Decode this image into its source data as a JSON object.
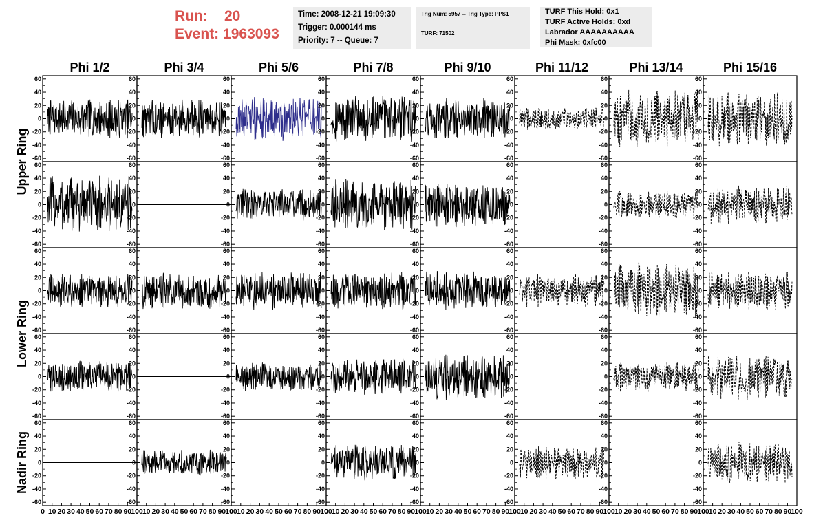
{
  "header": {
    "run_label": "Run:",
    "run_value": "20",
    "event_label": "Event:",
    "event_value": "1963093",
    "time_box": [
      "Time: 2008-12-21 19:09:30",
      "Trigger: 0.000144 ms",
      "Priority: 7 -- Queue: 7"
    ],
    "trig_box": [
      "Trig Num: 5957 -- Trig Type: PPS1",
      "TURF: 71502"
    ],
    "turf_box": [
      "TURF This Hold: 0x1",
      "TURF Active Holds: 0xd",
      "Labrador AAAAAAAAAA",
      "Phi Mask: 0xfc00"
    ]
  },
  "colors": {
    "trace": "#000000",
    "highlight": "#2e2e8c",
    "accent": "#d9534f"
  },
  "chart_data": {
    "type": "line",
    "columns": [
      "Phi 1/2",
      "Phi 3/4",
      "Phi 5/6",
      "Phi 7/8",
      "Phi 9/10",
      "Phi 11/12",
      "Phi 13/14",
      "Phi 15/16"
    ],
    "ring_labels": [
      {
        "label": "Upper Ring",
        "rows": [
          0,
          1
        ]
      },
      {
        "label": "Lower Ring",
        "rows": [
          2,
          3
        ]
      },
      {
        "label": "Nadir Ring",
        "rows": [
          4
        ]
      }
    ],
    "ylim": [
      -65,
      65
    ],
    "yticks": [
      -60,
      -40,
      -20,
      0,
      20,
      40,
      60
    ],
    "xlim": [
      0,
      100
    ],
    "xticks": [
      0,
      10,
      20,
      30,
      40,
      50,
      60,
      70,
      80,
      90,
      100
    ],
    "panels": [
      [
        {
          "trace": "solid",
          "amp": 30
        },
        {
          "trace": "solid",
          "amp": 30
        },
        {
          "trace": "highlight",
          "amp": 34
        },
        {
          "trace": "solid",
          "amp": 36
        },
        {
          "trace": "solid",
          "amp": 32
        },
        {
          "trace": "dashed",
          "amp": 18
        },
        {
          "trace": "dashed",
          "amp": 44
        },
        {
          "trace": "dashed",
          "amp": 42
        }
      ],
      [
        {
          "trace": "solid",
          "amp": 44
        },
        {
          "trace": "flat",
          "amp": 0
        },
        {
          "trace": "solid",
          "amp": 26
        },
        {
          "trace": "solid",
          "amp": 40
        },
        {
          "trace": "solid",
          "amp": 34
        },
        {
          "trace": "empty",
          "amp": 0
        },
        {
          "trace": "dashed",
          "amp": 22
        },
        {
          "trace": "dashed",
          "amp": 30
        }
      ],
      [
        {
          "trace": "solid",
          "amp": 26
        },
        {
          "trace": "solid",
          "amp": 28
        },
        {
          "trace": "solid",
          "amp": 30
        },
        {
          "trace": "solid",
          "amp": 30
        },
        {
          "trace": "solid",
          "amp": 30
        },
        {
          "trace": "dashed",
          "amp": 26
        },
        {
          "trace": "dashed",
          "amp": 42
        },
        {
          "trace": "dashed",
          "amp": 30
        }
      ],
      [
        {
          "trace": "solid",
          "amp": 24
        },
        {
          "trace": "flat",
          "amp": 0
        },
        {
          "trace": "solid",
          "amp": 22
        },
        {
          "trace": "solid",
          "amp": 28
        },
        {
          "trace": "solid",
          "amp": 36
        },
        {
          "trace": "empty",
          "amp": 0
        },
        {
          "trace": "dashed",
          "amp": 24
        },
        {
          "trace": "dashed",
          "amp": 36
        }
      ],
      [
        {
          "trace": "flat",
          "amp": 0
        },
        {
          "trace": "solid",
          "amp": 20
        },
        {
          "trace": "empty",
          "amp": 0
        },
        {
          "trace": "solid",
          "amp": 28
        },
        {
          "trace": "empty",
          "amp": 0
        },
        {
          "trace": "dashed",
          "amp": 26
        },
        {
          "trace": "empty",
          "amp": 0
        },
        {
          "trace": "dashed",
          "amp": 32
        }
      ]
    ]
  }
}
